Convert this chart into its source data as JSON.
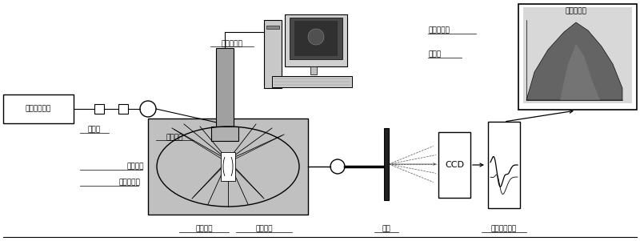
{
  "fig_width": 8.0,
  "fig_height": 3.01,
  "dpi": 100,
  "bg_color": "#ffffff",
  "labels": {
    "tunable_laser": "可调谐激光器",
    "coupler": "耦合器",
    "excitation_fiber": "激发光纤",
    "microscope_camera": "显微摄像机",
    "sample_stage": "样品平台",
    "ellipsoidal_cell": "椭球样品池",
    "coupling_lens": "耦合透镜",
    "fluorescence_fiber": "荧光光纤",
    "grating": "光栅",
    "ccd": "CCD",
    "two_d_spectrum": "二维荧光光谱",
    "full_spectrum": "荧光全光谱",
    "micro_photo": "显微摄"
  }
}
